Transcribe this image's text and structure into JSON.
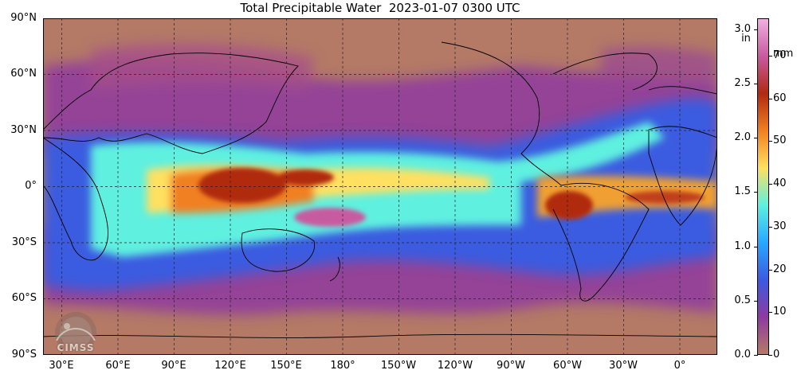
{
  "title": "Total Precipitable Water  2023-01-07 0300 UTC",
  "lat_labels": [
    "90°N",
    "60°N",
    "30°N",
    "0°",
    "30°S",
    "60°S",
    "90°S"
  ],
  "lon_labels": [
    "30°E",
    "60°E",
    "90°E",
    "120°E",
    "150°E",
    "180°",
    "150°W",
    "120°W",
    "90°W",
    "60°W",
    "30°W",
    "0°"
  ],
  "colorbar": {
    "unit_in": "in",
    "unit_mm": "mm",
    "in_ticks": [
      "3.0",
      "2.5",
      "2.0",
      "1.5",
      "1.0",
      "0.5",
      "0.0"
    ],
    "mm_ticks": [
      "70",
      "60",
      "50",
      "40",
      "30",
      "20",
      "10",
      "0"
    ],
    "in_max": 3.1,
    "mm_max": 78.74,
    "colors": [
      "#b47a66",
      "#8e3aa0",
      "#3a5be0",
      "#28a8ff",
      "#5ef0e0",
      "#ffe060",
      "#f08020",
      "#b02a10",
      "#c85aa0",
      "#f0b0e0"
    ]
  },
  "logo": {
    "text": "CIMSS"
  },
  "palette": {
    "background_dry": "#b47a66",
    "purple": "#8e3aa0",
    "blue": "#3a5be0",
    "cyan": "#5ef0e0",
    "yellow": "#ffe060",
    "orange": "#f08020",
    "red": "#b02a10",
    "magenta": "#c85aa0"
  }
}
